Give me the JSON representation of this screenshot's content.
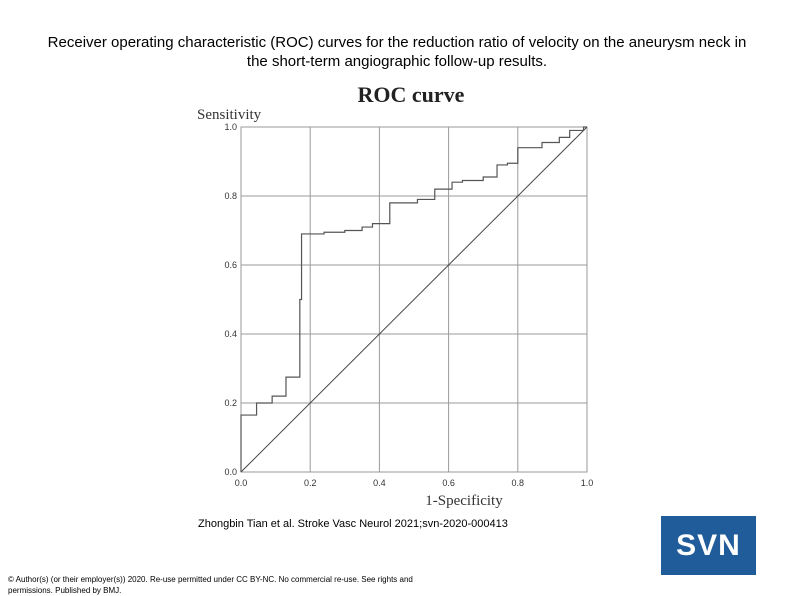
{
  "slide": {
    "title": "Receiver operating characteristic (ROC) curves for the reduction ratio of velocity on the aneurysm neck in the short-term angiographic follow-up results.",
    "citation": "Zhongbin Tian et al. Stroke Vasc Neurol 2021;svn-2020-000413",
    "copyright": "© Author(s) (or their employer(s)) 2020. Re-use permitted under CC BY-NC. No commercial re-use. See rights and permissions. Published by BMJ.",
    "logo_text": "SVN",
    "logo_color": "#1f5c99"
  },
  "chart_data": {
    "type": "line",
    "title": "ROC curve",
    "xlabel": "1-Specificity",
    "ylabel": "Sensitivity",
    "xlim": [
      0,
      1
    ],
    "ylim": [
      0,
      1
    ],
    "x_ticks": [
      "0.0",
      "0.2",
      "0.4",
      "0.6",
      "0.8",
      "1.0"
    ],
    "y_ticks": [
      "0.0",
      "0.2",
      "0.4",
      "0.6",
      "0.8",
      "1.0"
    ],
    "grid": true,
    "line_color": "#555555",
    "reference_color": "#444444",
    "series": [
      {
        "x": [
          0.0,
          0.0,
          0.045,
          0.045,
          0.09,
          0.09,
          0.13,
          0.13,
          0.17,
          0.17,
          0.175,
          0.175,
          0.24,
          0.24,
          0.3,
          0.3,
          0.35,
          0.35,
          0.38,
          0.38,
          0.43,
          0.43,
          0.51,
          0.51,
          0.56,
          0.56,
          0.61,
          0.61,
          0.64,
          0.64,
          0.7,
          0.7,
          0.74,
          0.74,
          0.77,
          0.77,
          0.8,
          0.8,
          0.87,
          0.87,
          0.92,
          0.92,
          0.95,
          0.95,
          0.99,
          0.99,
          1.0
        ],
        "y": [
          0.0,
          0.165,
          0.165,
          0.2,
          0.2,
          0.22,
          0.22,
          0.275,
          0.275,
          0.5,
          0.5,
          0.69,
          0.69,
          0.695,
          0.695,
          0.7,
          0.7,
          0.71,
          0.71,
          0.72,
          0.72,
          0.78,
          0.78,
          0.79,
          0.79,
          0.82,
          0.82,
          0.84,
          0.84,
          0.845,
          0.845,
          0.855,
          0.855,
          0.89,
          0.89,
          0.895,
          0.895,
          0.94,
          0.94,
          0.955,
          0.955,
          0.97,
          0.97,
          0.99,
          0.99,
          1.0,
          1.0
        ]
      },
      {
        "x": [
          0.0,
          1.0
        ],
        "y": [
          0.0,
          1.0
        ]
      }
    ]
  }
}
